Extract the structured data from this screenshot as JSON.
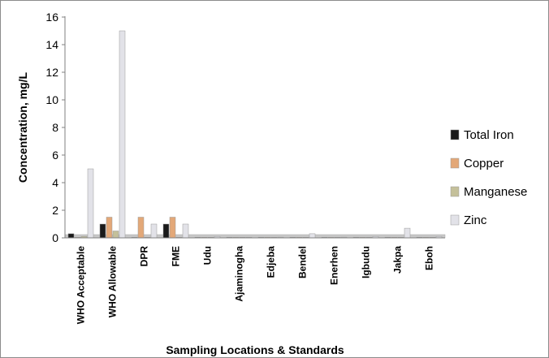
{
  "chart_data": {
    "type": "bar",
    "xlabel": "Sampling Locations & Standards",
    "ylabel": "Concentration, mg/L",
    "ylim": [
      0,
      16
    ],
    "yticks": [
      0,
      2,
      4,
      6,
      8,
      10,
      12,
      14,
      16
    ],
    "grid": false,
    "legend_position": "right",
    "categories": [
      "WHO Acceptable",
      "WHO Allowable",
      "DPR",
      "FME",
      "Udu",
      "Ajaminogha",
      "Edjeba",
      "Bendel",
      "Enerhen",
      "Igbudu",
      "Jakpa",
      "Eboh"
    ],
    "series": [
      {
        "name": "Total Iron",
        "color": "#1a1a1a",
        "values": [
          0.3,
          1.0,
          0,
          1.0,
          0.02,
          0.02,
          0.02,
          0.02,
          0.02,
          0.02,
          0.02,
          0.02
        ]
      },
      {
        "name": "Copper",
        "color": "#e3a878",
        "values": [
          0,
          1.5,
          1.5,
          1.5,
          0,
          0,
          0,
          0,
          0,
          0,
          0,
          0
        ]
      },
      {
        "name": "Manganese",
        "color": "#c4c09a",
        "values": [
          0.1,
          0.5,
          0,
          0,
          0.01,
          0.01,
          0.01,
          0.01,
          0.01,
          0.01,
          0.01,
          0.01
        ]
      },
      {
        "name": "Zinc",
        "color": "#e2e2e8",
        "values": [
          5.0,
          15.0,
          1.0,
          1.0,
          0.1,
          0.02,
          0.05,
          0.3,
          0.05,
          0.1,
          0.7,
          0.1
        ]
      }
    ]
  }
}
